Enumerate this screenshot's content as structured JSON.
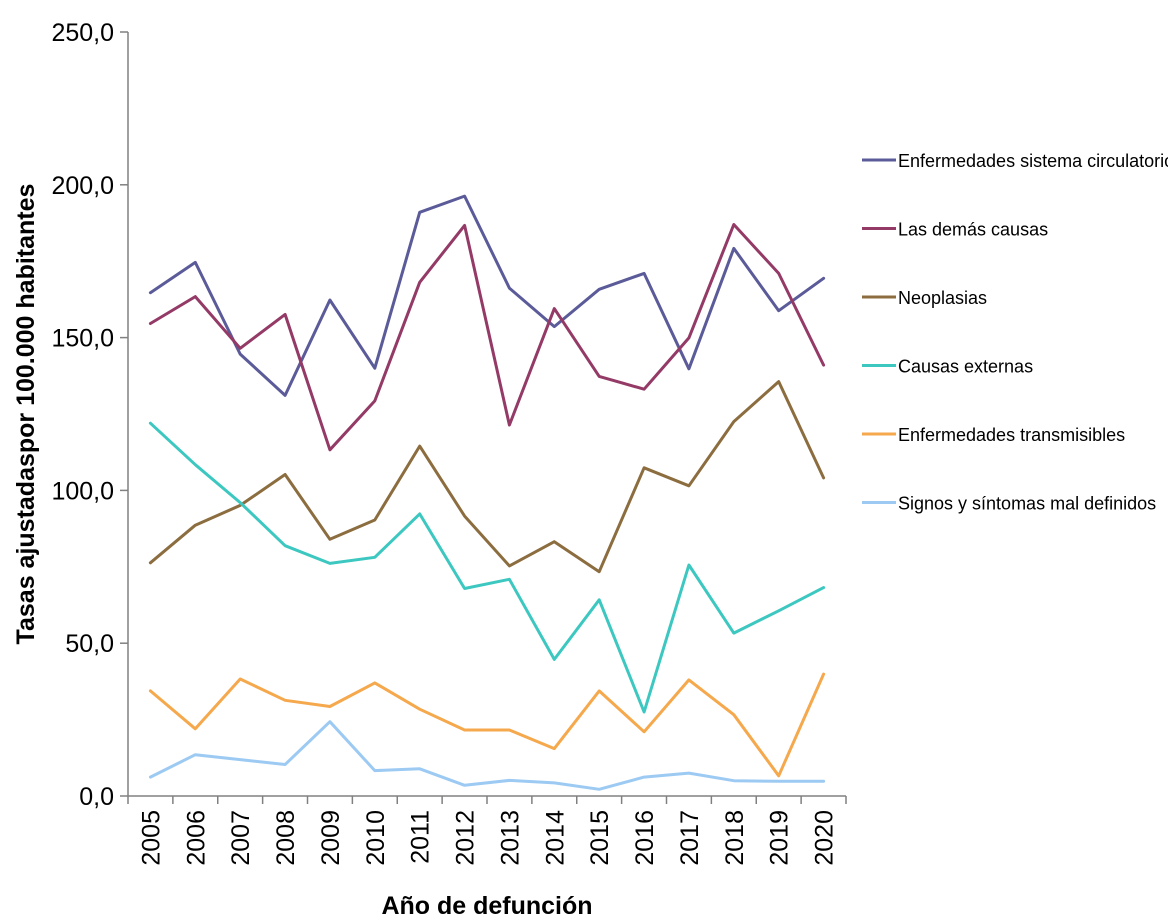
{
  "chart_data": {
    "type": "line",
    "xlabel": "Año de defunción",
    "ylabel": "Tasas ajustadaspor 100.000 habitantes",
    "ylim": [
      0,
      250
    ],
    "yticks": [
      "0,0",
      "50,0",
      "100,0",
      "150,0",
      "200,0",
      "250,0"
    ],
    "categories": [
      "2005",
      "2006",
      "2007",
      "2008",
      "2009",
      "2010",
      "2011",
      "2012",
      "2013",
      "2014",
      "2015",
      "2016",
      "2017",
      "2018",
      "2019",
      "2020"
    ],
    "legend_position": "right",
    "grid": false,
    "series": [
      {
        "name": "Enfermedades sistema circulatorio",
        "color": "#5b5b9a",
        "values": [
          164.7,
          174.6,
          144.6,
          131.1,
          162.3,
          140.0,
          191.0,
          196.3,
          166.2,
          153.6,
          165.8,
          171.0,
          139.8,
          179.2,
          158.8,
          169.4
        ]
      },
      {
        "name": "Las demás causas",
        "color": "#943a66",
        "values": [
          154.6,
          163.4,
          146.5,
          157.6,
          113.3,
          129.3,
          168.1,
          186.7,
          121.4,
          159.5,
          137.3,
          133.1,
          149.9,
          187.0,
          171.0,
          141.0
        ]
      },
      {
        "name": "Neoplasias",
        "color": "#8c6d3f",
        "values": [
          76.3,
          88.6,
          95.1,
          105.2,
          84.0,
          90.3,
          114.5,
          91.6,
          75.3,
          83.2,
          73.4,
          107.4,
          101.5,
          122.5,
          135.6,
          104.1
        ]
      },
      {
        "name": "Causas externas",
        "color": "#3cc8c0",
        "values": [
          122.0,
          108.4,
          96.0,
          81.9,
          76.1,
          78.1,
          92.3,
          67.9,
          70.9,
          44.7,
          64.2,
          27.5,
          75.6,
          53.3,
          60.6,
          68.2
        ]
      },
      {
        "name": "Enfermedades transmisibles",
        "color": "#f5a84c",
        "values": [
          34.4,
          22.0,
          38.3,
          31.3,
          29.3,
          37.0,
          28.4,
          21.6,
          21.6,
          15.5,
          34.4,
          21.0,
          38.0,
          26.6,
          6.6,
          39.9
        ]
      },
      {
        "name": "Signos y síntomas mal definidos",
        "color": "#9ccaf3",
        "values": [
          6.2,
          13.5,
          11.9,
          10.3,
          24.3,
          8.3,
          8.9,
          3.5,
          5.1,
          4.3,
          2.2,
          6.2,
          7.5,
          5.0,
          4.8,
          4.8
        ]
      }
    ]
  }
}
